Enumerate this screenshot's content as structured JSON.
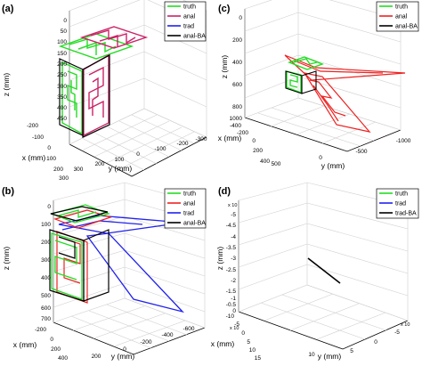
{
  "chart_data": [
    {
      "type": "line",
      "panel_label": "(a)",
      "xlabel": "x (mm)",
      "ylabel": "y (mm)",
      "zlabel": "z (mm)",
      "x_ticks": [
        "-200",
        "-100",
        "0",
        "100",
        "200",
        "300"
      ],
      "y_ticks": [
        "300",
        "200",
        "100",
        "0",
        "-100",
        "-200",
        "-300"
      ],
      "z_ticks": [
        "0",
        "50",
        "100",
        "150",
        "200",
        "250",
        "300",
        "350",
        "400",
        "450"
      ],
      "legend": [
        "truth",
        "anal",
        "trad",
        "anal-BA"
      ],
      "legend_colors": [
        "#22dd22",
        "#cc2266",
        "#2222ee",
        "#000000"
      ],
      "legend_placement": "top-right",
      "grid": true
    },
    {
      "type": "line",
      "panel_label": "(b)",
      "xlabel": "x (mm)",
      "ylabel": "y (mm)",
      "zlabel": "z (mm)",
      "x_ticks": [
        "-200",
        "0",
        "200",
        "400"
      ],
      "y_ticks": [
        "200",
        "0",
        "-200",
        "-400",
        "-600"
      ],
      "z_ticks": [
        "0",
        "100",
        "200",
        "300",
        "400",
        "500",
        "600",
        "700"
      ],
      "legend": [
        "truth",
        "anal",
        "trad",
        "anal-BA"
      ],
      "legend_colors": [
        "#22dd22",
        "#ee2222",
        "#2222ee",
        "#000000"
      ],
      "legend_placement": "top-right",
      "grid": true
    },
    {
      "type": "line",
      "panel_label": "(c)",
      "xlabel": "x (mm)",
      "ylabel": "y (mm)",
      "zlabel": "z (mm)",
      "x_ticks": [
        "-400",
        "-200",
        "0",
        "200",
        "400"
      ],
      "y_ticks": [
        "500",
        "0",
        "-500",
        "-1000"
      ],
      "z_ticks": [
        "0",
        "200",
        "400",
        "600",
        "800",
        "1000"
      ],
      "legend": [
        "truth",
        "anal",
        "anal-BA"
      ],
      "legend_colors": [
        "#22dd22",
        "#ee2222",
        "#000000"
      ],
      "legend_placement": "top-right",
      "grid": true
    },
    {
      "type": "line",
      "panel_label": "(d)",
      "xlabel": "x (mm)",
      "ylabel": "y (mm)",
      "zlabel": "z (mm)",
      "x_ticks": [
        "-10",
        "-5",
        "0",
        "5",
        "10",
        "15"
      ],
      "y_ticks": [
        "10",
        "5",
        "0",
        "-5"
      ],
      "z_ticks": [
        "-5",
        "-4.5",
        "-4",
        "-3.5",
        "-3",
        "-2.5",
        "-2",
        "-1.5",
        "-1",
        "-0.5",
        "0"
      ],
      "x_multiplier": "x 10",
      "y_multiplier": "x 10",
      "z_multiplier": "x 10",
      "legend": [
        "truth",
        "trad",
        "trad-BA"
      ],
      "legend_colors": [
        "#22dd22",
        "#2222ee",
        "#000000"
      ],
      "legend_placement": "top-right",
      "grid": true
    }
  ]
}
